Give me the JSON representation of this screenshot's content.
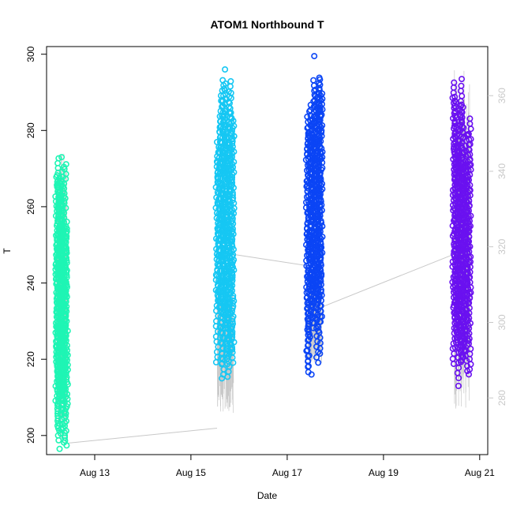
{
  "chart_data": {
    "type": "scatter",
    "title": "ATOM1 Northbound T",
    "xlabel": "Date",
    "ylabel": "T",
    "xlim": [
      "2021-08-12 00:00",
      "2021-08-21 04:00"
    ],
    "ylim": [
      195,
      302
    ],
    "y2lim": [
      265,
      373
    ],
    "x_ticks": [
      "Aug 13",
      "Aug 15",
      "Aug 17",
      "Aug 19",
      "Aug 21"
    ],
    "y_ticks": [
      200,
      220,
      240,
      260,
      280,
      300
    ],
    "y2_ticks": [
      280,
      300,
      320,
      340,
      360
    ],
    "grid": false,
    "legend": "none",
    "colors": {
      "secondary_line": "#c8c8c8",
      "right_axis": "#c8c8c8",
      "axes": "#000000"
    },
    "series": [
      {
        "color": "#1ef5b4",
        "x": [
          "2021-08-12 05:00",
          "2021-08-12 10:00"
        ],
        "y": [
          196.5,
          273
        ]
      },
      {
        "color": "#16c7f3",
        "x": [
          "2021-08-15 13:00",
          "2021-08-15 21:00"
        ],
        "y": [
          215,
          296
        ]
      },
      {
        "color": "#0b45f5",
        "x": [
          "2021-08-17 10:00",
          "2021-08-17 17:00"
        ],
        "y": [
          216,
          299.5
        ]
      },
      {
        "color": "#6a11f0",
        "x": [
          "2021-08-20 11:00",
          "2021-08-20 19:00"
        ],
        "y": [
          213,
          293.5
        ]
      }
    ],
    "secondary_series": {
      "axis": "right",
      "color": "#c8c8c8",
      "clusters": [
        {
          "x": [
            "2021-08-12 05:00",
            "2021-08-12 10:00"
          ],
          "y": [
            268,
            345
          ]
        },
        {
          "x": [
            "2021-08-15 13:00",
            "2021-08-15 21:00"
          ],
          "y": [
            276,
            310
          ]
        },
        {
          "x": [
            "2021-08-17 10:00",
            "2021-08-17 17:00"
          ],
          "y": [
            289,
            313
          ]
        },
        {
          "x": [
            "2021-08-20 11:00",
            "2021-08-20 19:00"
          ],
          "y": [
            277,
            367
          ]
        }
      ],
      "connectors": [
        {
          "x": [
            "2021-08-12 10:00",
            "2021-08-15 13:00"
          ],
          "y": [
            268,
            272
          ]
        },
        {
          "x": [
            "2021-08-15 21:00",
            "2021-08-17 10:00"
          ],
          "y": [
            318,
            315
          ]
        },
        {
          "x": [
            "2021-08-17 17:00",
            "2021-08-20 11:00"
          ],
          "y": [
            304,
            318
          ]
        }
      ]
    }
  }
}
